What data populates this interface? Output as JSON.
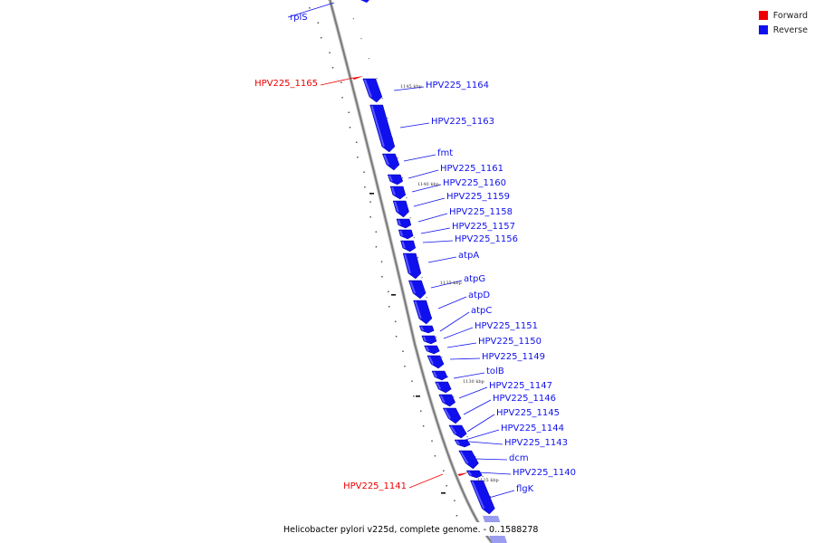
{
  "legend": [
    {
      "label": "Forward",
      "color": "#ee0000"
    },
    {
      "label": "Reverse",
      "color": "#1010ee"
    }
  ],
  "caption": "Helicobacter pylori v225d, complete genome. - 0..1588278",
  "colors": {
    "forward": "#ee0000",
    "reverse": "#1010ee",
    "reverse_light": "#9a9cf0",
    "backbone": "#8a8a8a"
  },
  "kbp_ticks": [
    "1145 kbp",
    "1140 kbp",
    "1135 kbp",
    "1130 kbp",
    "1125 kbp"
  ],
  "genes": [
    {
      "label": "rplS",
      "strand": "reverse"
    },
    {
      "label": "HPV225_1165",
      "strand": "forward"
    },
    {
      "label": "HPV225_1164",
      "strand": "reverse"
    },
    {
      "label": "HPV225_1163",
      "strand": "reverse"
    },
    {
      "label": "fmt",
      "strand": "reverse"
    },
    {
      "label": "HPV225_1161",
      "strand": "reverse"
    },
    {
      "label": "HPV225_1160",
      "strand": "reverse"
    },
    {
      "label": "HPV225_1159",
      "strand": "reverse"
    },
    {
      "label": "HPV225_1158",
      "strand": "reverse"
    },
    {
      "label": "HPV225_1157",
      "strand": "reverse"
    },
    {
      "label": "HPV225_1156",
      "strand": "reverse"
    },
    {
      "label": "atpA",
      "strand": "reverse"
    },
    {
      "label": "atpG",
      "strand": "reverse"
    },
    {
      "label": "atpD",
      "strand": "reverse"
    },
    {
      "label": "atpC",
      "strand": "reverse"
    },
    {
      "label": "HPV225_1151",
      "strand": "reverse"
    },
    {
      "label": "HPV225_1150",
      "strand": "reverse"
    },
    {
      "label": "HPV225_1149",
      "strand": "reverse"
    },
    {
      "label": "tolB",
      "strand": "reverse"
    },
    {
      "label": "HPV225_1147",
      "strand": "reverse"
    },
    {
      "label": "HPV225_1146",
      "strand": "reverse"
    },
    {
      "label": "HPV225_1145",
      "strand": "reverse"
    },
    {
      "label": "HPV225_1144",
      "strand": "reverse"
    },
    {
      "label": "HPV225_1143",
      "strand": "reverse"
    },
    {
      "label": "dcm",
      "strand": "reverse"
    },
    {
      "label": "HPV225_1141",
      "strand": "forward"
    },
    {
      "label": "HPV225_1140",
      "strand": "reverse"
    },
    {
      "label": "flgK",
      "strand": "reverse"
    }
  ]
}
